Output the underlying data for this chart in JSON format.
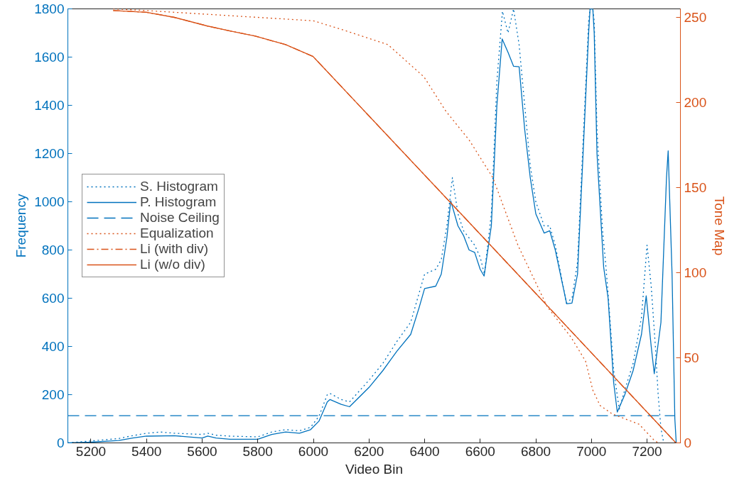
{
  "chart_data": {
    "type": "line",
    "xlabel": "Video Bin",
    "ylabel": "Frequency",
    "y2label": "Tone Map",
    "xlim": [
      5117,
      7320
    ],
    "ylim": [
      0,
      1800
    ],
    "y2lim": [
      0,
      255
    ],
    "xticks": [
      5200,
      5400,
      5600,
      5800,
      6000,
      6200,
      6400,
      6600,
      6800,
      7000,
      7200
    ],
    "yticks": [
      0,
      200,
      400,
      600,
      800,
      1000,
      1200,
      1400,
      1600,
      1800
    ],
    "y2ticks": [
      0,
      50,
      100,
      150,
      200,
      250
    ],
    "grid": false,
    "legend": "left",
    "series": [
      {
        "name": "S. Histogram",
        "color": "#0072bd",
        "line_style": "dotted",
        "x": [
          5117,
          5200,
          5300,
          5350,
          5400,
          5450,
          5500,
          5600,
          5620,
          5650,
          5700,
          5800,
          5850,
          5900,
          5950,
          5990,
          6020,
          6050,
          6060,
          6100,
          6130,
          6200,
          6250,
          6300,
          6350,
          6380,
          6400,
          6440,
          6460,
          6480,
          6500,
          6520,
          6540,
          6560,
          6580,
          6600,
          6615,
          6640,
          6660,
          6680,
          6700,
          6720,
          6740,
          6760,
          6780,
          6800,
          6830,
          6850,
          6870,
          6910,
          6930,
          6950,
          6970,
          6990,
          6995,
          7005,
          7010,
          7020,
          7040,
          7050,
          7060,
          7080,
          7100,
          7120,
          7150,
          7180,
          7200,
          7215,
          7230,
          7240,
          7250,
          7260
        ],
        "values": [
          0,
          8,
          18,
          30,
          40,
          45,
          40,
          35,
          40,
          32,
          28,
          25,
          45,
          55,
          50,
          65,
          110,
          200,
          205,
          180,
          170,
          260,
          330,
          420,
          500,
          620,
          700,
          720,
          760,
          900,
          1100,
          950,
          880,
          850,
          820,
          770,
          700,
          950,
          1500,
          1790,
          1700,
          1800,
          1650,
          1400,
          1150,
          1000,
          900,
          900,
          820,
          580,
          600,
          750,
          1250,
          1750,
          1800,
          1800,
          1750,
          1300,
          880,
          760,
          620,
          300,
          140,
          220,
          330,
          520,
          820,
          650,
          400,
          200,
          60,
          0
        ]
      },
      {
        "name": "P. Histogram",
        "color": "#0072bd",
        "line_style": "solid",
        "x": [
          5117,
          5200,
          5300,
          5350,
          5400,
          5500,
          5600,
          5620,
          5650,
          5700,
          5800,
          5850,
          5900,
          5950,
          5990,
          6020,
          6050,
          6060,
          6100,
          6130,
          6200,
          6250,
          6300,
          6350,
          6380,
          6400,
          6440,
          6460,
          6480,
          6494,
          6520,
          6540,
          6560,
          6580,
          6600,
          6614,
          6640,
          6660,
          6679,
          6700,
          6720,
          6740,
          6760,
          6780,
          6800,
          6830,
          6850,
          6870,
          6911,
          6930,
          6950,
          6970,
          6990,
          6995,
          7005,
          7010,
          7020,
          7044,
          7060,
          7080,
          7093,
          7120,
          7150,
          7180,
          7197,
          7215,
          7226,
          7250,
          7270,
          7276,
          7290,
          7300,
          7305
        ],
        "values": [
          0,
          3,
          10,
          20,
          28,
          30,
          20,
          28,
          20,
          15,
          15,
          35,
          45,
          40,
          55,
          90,
          170,
          180,
          160,
          150,
          230,
          300,
          380,
          450,
          560,
          640,
          650,
          700,
          850,
          1004,
          900,
          860,
          800,
          790,
          720,
          692,
          900,
          1400,
          1675,
          1620,
          1562,
          1560,
          1300,
          1100,
          950,
          870,
          880,
          800,
          577,
          580,
          700,
          1200,
          1700,
          1800,
          1800,
          1700,
          1200,
          729,
          600,
          250,
          128,
          200,
          300,
          450,
          610,
          400,
          287,
          500,
          1100,
          1211,
          700,
          100,
          0
        ]
      },
      {
        "name": "Noise Ceiling",
        "color": "#0072bd",
        "line_style": "dashed",
        "x": [
          5117,
          7300
        ],
        "values": [
          113,
          113
        ]
      },
      {
        "name": "Equalization",
        "color": "#d95319",
        "line_style": "dotted",
        "axis": "y2",
        "x": [
          5280,
          5400,
          5500,
          5700,
          5900,
          6000,
          6100,
          6268,
          6398,
          6476,
          6560,
          6645,
          6736,
          6841,
          6927,
          6979,
          7005,
          7031,
          7075,
          7171,
          7223,
          7240
        ],
        "values": [
          255,
          254,
          253,
          251,
          249,
          248,
          243,
          234,
          215,
          195,
          178,
          156,
          116,
          80,
          62,
          48,
          31,
          22,
          17,
          11,
          2,
          0
        ]
      },
      {
        "name": "Li (with div)",
        "color": "#d95319",
        "line_style": "dashdot",
        "axis": "y2",
        "x": [
          5280,
          5400,
          5500,
          5617,
          5700,
          5791,
          5900,
          5999,
          6500,
          7304
        ],
        "values": [
          254,
          253,
          250,
          245,
          242,
          239,
          234,
          227,
          140,
          0
        ]
      },
      {
        "name": "Li (w/o div)",
        "color": "#d95319",
        "line_style": "solid",
        "axis": "y2",
        "x": [
          5280,
          5400,
          5500,
          5617,
          5700,
          5791,
          5900,
          5999,
          6500,
          7304
        ],
        "values": [
          254,
          253,
          250,
          245,
          242,
          239,
          234,
          227,
          140,
          0
        ]
      }
    ]
  }
}
